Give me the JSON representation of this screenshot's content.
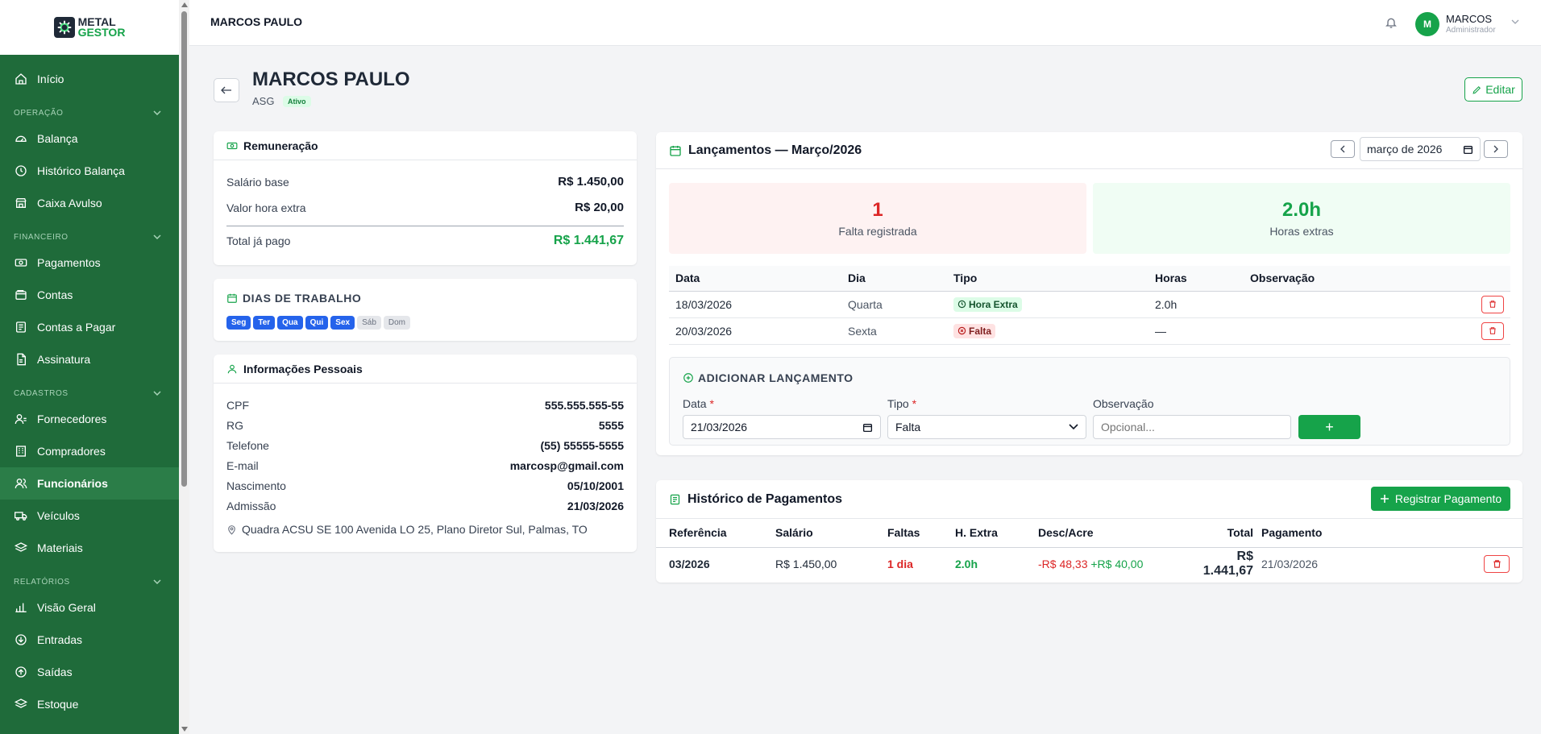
{
  "logo": {
    "line1": "METAL",
    "line2": "GESTOR"
  },
  "sidebar": {
    "items_top": [
      {
        "label": "Início",
        "icon": "home-icon"
      }
    ],
    "sections": [
      {
        "title": "OPERAÇÃO",
        "items": [
          {
            "label": "Balança",
            "icon": "gauge-icon"
          },
          {
            "label": "Histórico Balança",
            "icon": "clock-icon"
          },
          {
            "label": "Caixa Avulso",
            "icon": "store-icon"
          }
        ]
      },
      {
        "title": "FINANCEIRO",
        "items": [
          {
            "label": "Pagamentos",
            "icon": "money-icon"
          },
          {
            "label": "Contas",
            "icon": "wallet-icon"
          },
          {
            "label": "Contas a Pagar",
            "icon": "receipt-icon"
          },
          {
            "label": "Assinatura",
            "icon": "document-icon"
          }
        ]
      },
      {
        "title": "CADASTROS",
        "items": [
          {
            "label": "Fornecedores",
            "icon": "user-icon"
          },
          {
            "label": "Compradores",
            "icon": "building-icon"
          },
          {
            "label": "Funcionários",
            "icon": "users-icon",
            "active": true
          },
          {
            "label": "Veículos",
            "icon": "truck-icon"
          },
          {
            "label": "Materiais",
            "icon": "layers-icon"
          }
        ]
      },
      {
        "title": "RELATÓRIOS",
        "items": [
          {
            "label": "Visão Geral",
            "icon": "bar-chart-icon"
          },
          {
            "label": "Entradas",
            "icon": "arrow-down-circle-icon"
          },
          {
            "label": "Saídas",
            "icon": "arrow-up-circle-icon"
          },
          {
            "label": "Estoque",
            "icon": "layers-icon"
          }
        ]
      }
    ]
  },
  "topbar": {
    "title": "MARCOS PAULO",
    "user_initial": "M",
    "user_name": "MARCOS",
    "user_role": "Administrador"
  },
  "employee": {
    "name": "MARCOS PAULO",
    "role": "ASG",
    "status": "Ativo",
    "edit_label": "Editar"
  },
  "remuneracao": {
    "title": "Remuneração",
    "rows": [
      {
        "label": "Salário base",
        "value": "R$ 1.450,00"
      },
      {
        "label": "Valor hora extra",
        "value": "R$ 20,00"
      },
      {
        "label": "Total já pago",
        "value": "R$ 1.441,67"
      }
    ]
  },
  "dias": {
    "title": "DIAS DE TRABALHO",
    "days": [
      {
        "label": "Seg",
        "active": true
      },
      {
        "label": "Ter",
        "active": true
      },
      {
        "label": "Qua",
        "active": true
      },
      {
        "label": "Qui",
        "active": true
      },
      {
        "label": "Sex",
        "active": true
      },
      {
        "label": "Sáb",
        "active": false
      },
      {
        "label": "Dom",
        "active": false
      }
    ]
  },
  "pessoais": {
    "title": "Informações Pessoais",
    "rows": [
      {
        "label": "CPF",
        "value": "555.555.555-55"
      },
      {
        "label": "RG",
        "value": "5555"
      },
      {
        "label": "Telefone",
        "value": "(55) 55555-5555"
      },
      {
        "label": "E-mail",
        "value": "marcosp@gmail.com"
      },
      {
        "label": "Nascimento",
        "value": "05/10/2001"
      },
      {
        "label": "Admissão",
        "value": "21/03/2026"
      }
    ],
    "address": "Quadra ACSU SE 100 Avenida LO 25, Plano Diretor Sul, Palmas, TO"
  },
  "lancamentos": {
    "title": "Lançamentos — Março/2026",
    "month_value": "março de 2026",
    "stats": [
      {
        "value": "1",
        "label": "Falta registrada"
      },
      {
        "value": "2.0h",
        "label": "Horas extras"
      }
    ],
    "columns": [
      "Data",
      "Dia",
      "Tipo",
      "Horas",
      "Observação"
    ],
    "rows": [
      {
        "data": "18/03/2026",
        "dia": "Quarta",
        "tipo": "Hora Extra",
        "horas": "2.0h",
        "obs": ""
      },
      {
        "data": "20/03/2026",
        "dia": "Sexta",
        "tipo": "Falta",
        "horas": "—",
        "obs": ""
      }
    ],
    "form": {
      "title": "ADICIONAR LANÇAMENTO",
      "data_label": "Data",
      "tipo_label": "Tipo",
      "obs_label": "Observação",
      "data_value": "21/03/2026",
      "tipo_value": "Falta",
      "obs_placeholder": "Opcional...",
      "add_label": "+"
    }
  },
  "historico": {
    "title": "Histórico de Pagamentos",
    "register_label": "Registrar Pagamento",
    "columns": [
      "Referência",
      "Salário",
      "Faltas",
      "H. Extra",
      "Desc/Acre",
      "Total",
      "Pagamento"
    ],
    "rows": [
      {
        "ref": "03/2026",
        "salario": "R$ 1.450,00",
        "faltas": "1 dia",
        "hextra": "2.0h",
        "desconto": "-R$ 48,33",
        "acrescimo": "+R$ 40,00",
        "total": "R$ 1.441,67",
        "pagamento": "21/03/2026"
      }
    ]
  },
  "colors": {
    "sidebar": "#1f6b3a",
    "accent": "#16a34a",
    "danger": "#dc2626",
    "chip": "#2563eb"
  }
}
